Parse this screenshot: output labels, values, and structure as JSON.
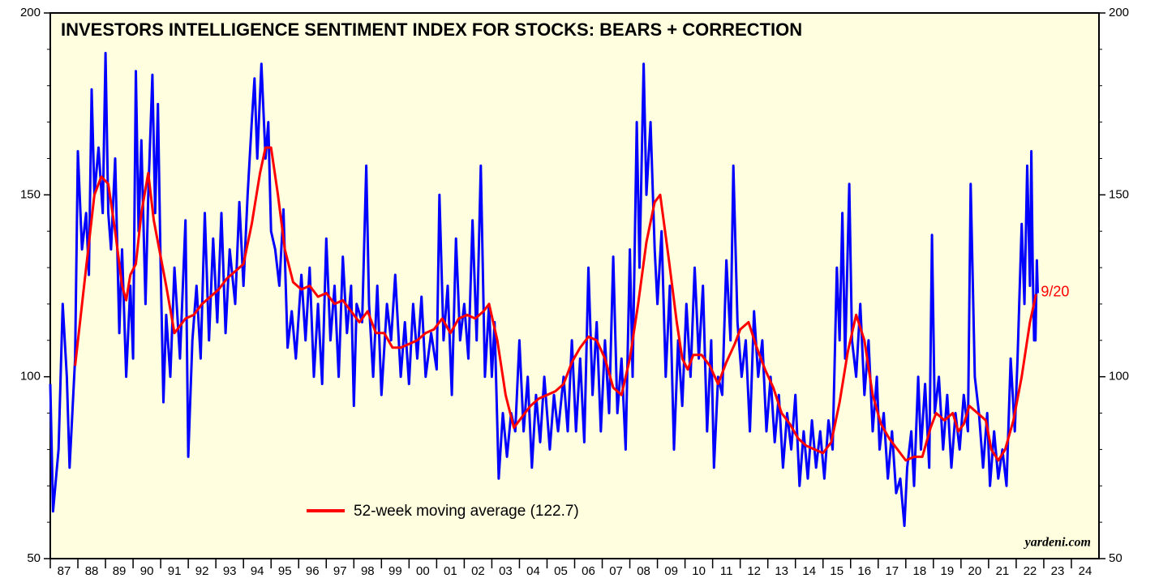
{
  "chart_data": {
    "type": "line",
    "title": "INVESTORS INTELLIGENCE SENTIMENT INDEX FOR STOCKS: BEARS + CORRECTION",
    "source": "yardeni.com",
    "annotation": "9/20",
    "ylim": [
      50,
      200
    ],
    "yticks": [
      50,
      100,
      150,
      200
    ],
    "yminor_ticks": [
      60,
      70,
      80,
      90,
      110,
      120,
      130,
      140,
      160,
      170,
      180,
      190
    ],
    "xlim": [
      1987,
      2025
    ],
    "xticks": [
      {
        "value": 1987,
        "label": "87"
      },
      {
        "value": 1988,
        "label": "88"
      },
      {
        "value": 1989,
        "label": "89"
      },
      {
        "value": 1990,
        "label": "90"
      },
      {
        "value": 1991,
        "label": "91"
      },
      {
        "value": 1992,
        "label": "92"
      },
      {
        "value": 1993,
        "label": "93"
      },
      {
        "value": 1994,
        "label": "94"
      },
      {
        "value": 1995,
        "label": "95"
      },
      {
        "value": 1996,
        "label": "96"
      },
      {
        "value": 1997,
        "label": "97"
      },
      {
        "value": 1998,
        "label": "98"
      },
      {
        "value": 1999,
        "label": "99"
      },
      {
        "value": 2000,
        "label": "00"
      },
      {
        "value": 2001,
        "label": "01"
      },
      {
        "value": 2002,
        "label": "02"
      },
      {
        "value": 2003,
        "label": "03"
      },
      {
        "value": 2004,
        "label": "04"
      },
      {
        "value": 2005,
        "label": "05"
      },
      {
        "value": 2006,
        "label": "06"
      },
      {
        "value": 2007,
        "label": "07"
      },
      {
        "value": 2008,
        "label": "08"
      },
      {
        "value": 2009,
        "label": "09"
      },
      {
        "value": 2010,
        "label": "10"
      },
      {
        "value": 2011,
        "label": "11"
      },
      {
        "value": 2012,
        "label": "12"
      },
      {
        "value": 2013,
        "label": "13"
      },
      {
        "value": 2014,
        "label": "14"
      },
      {
        "value": 2015,
        "label": "15"
      },
      {
        "value": 2016,
        "label": "16"
      },
      {
        "value": 2017,
        "label": "17"
      },
      {
        "value": 2018,
        "label": "18"
      },
      {
        "value": 2019,
        "label": "19"
      },
      {
        "value": 2020,
        "label": "20"
      },
      {
        "value": 2021,
        "label": "21"
      },
      {
        "value": 2022,
        "label": "22"
      },
      {
        "value": 2023,
        "label": "23"
      },
      {
        "value": 2024,
        "label": "24"
      }
    ],
    "background": "#ffffe0",
    "series": [
      {
        "color": "#0000ff",
        "x": [
          1987.0,
          1987.1,
          1987.3,
          1987.45,
          1987.6,
          1987.7,
          1987.9,
          1988.0,
          1988.15,
          1988.3,
          1988.4,
          1988.5,
          1988.6,
          1988.75,
          1988.9,
          1989.0,
          1989.1,
          1989.2,
          1989.35,
          1989.5,
          1989.6,
          1989.75,
          1989.9,
          1990.0,
          1990.1,
          1990.2,
          1990.3,
          1990.45,
          1990.55,
          1990.7,
          1990.8,
          1990.9,
          1991.0,
          1991.1,
          1991.2,
          1991.35,
          1991.5,
          1991.7,
          1991.9,
          1992.0,
          1992.15,
          1992.3,
          1992.45,
          1992.6,
          1992.75,
          1992.9,
          1993.05,
          1993.2,
          1993.35,
          1993.5,
          1993.7,
          1993.85,
          1994.0,
          1994.15,
          1994.3,
          1994.4,
          1994.5,
          1994.65,
          1994.8,
          1994.9,
          1995.0,
          1995.15,
          1995.3,
          1995.45,
          1995.6,
          1995.75,
          1995.9,
          1996.1,
          1996.25,
          1996.4,
          1996.55,
          1996.7,
          1996.85,
          1997.0,
          1997.15,
          1997.3,
          1997.45,
          1997.6,
          1997.75,
          1997.9,
          1998.0,
          1998.1,
          1998.3,
          1998.45,
          1998.55,
          1998.7,
          1998.85,
          1999.0,
          1999.2,
          1999.35,
          1999.5,
          1999.7,
          1999.85,
          2000.0,
          2000.15,
          2000.3,
          2000.45,
          2000.6,
          2000.8,
          2001.0,
          2001.1,
          2001.25,
          2001.4,
          2001.55,
          2001.7,
          2001.85,
          2002.0,
          2002.15,
          2002.3,
          2002.45,
          2002.6,
          2002.75,
          2002.9,
          2003.0,
          2003.1,
          2003.25,
          2003.4,
          2003.55,
          2003.7,
          2003.85,
          2004.0,
          2004.15,
          2004.3,
          2004.45,
          2004.6,
          2004.75,
          2004.9,
          2005.1,
          2005.25,
          2005.4,
          2005.6,
          2005.75,
          2005.9,
          2006.05,
          2006.2,
          2006.35,
          2006.5,
          2006.65,
          2006.8,
          2006.95,
          2007.1,
          2007.25,
          2007.4,
          2007.55,
          2007.7,
          2007.85,
          2008.0,
          2008.1,
          2008.25,
          2008.35,
          2008.5,
          2008.6,
          2008.75,
          2008.9,
          2009.0,
          2009.15,
          2009.3,
          2009.45,
          2009.6,
          2009.75,
          2009.9,
          2010.05,
          2010.2,
          2010.35,
          2010.5,
          2010.65,
          2010.8,
          2010.95,
          2011.05,
          2011.2,
          2011.35,
          2011.5,
          2011.65,
          2011.75,
          2011.9,
          2012.05,
          2012.2,
          2012.35,
          2012.5,
          2012.65,
          2012.8,
          2012.95,
          2013.1,
          2013.25,
          2013.4,
          2013.55,
          2013.7,
          2013.85,
          2014.0,
          2014.15,
          2014.3,
          2014.45,
          2014.6,
          2014.75,
          2014.9,
          2015.05,
          2015.2,
          2015.35,
          2015.5,
          2015.6,
          2015.7,
          2015.8,
          2015.95,
          2016.05,
          2016.2,
          2016.35,
          2016.5,
          2016.65,
          2016.8,
          2016.95,
          2017.05,
          2017.2,
          2017.35,
          2017.5,
          2017.65,
          2017.8,
          2017.95,
          2018.05,
          2018.2,
          2018.3,
          2018.45,
          2018.55,
          2018.7,
          2018.85,
          2018.95,
          2019.05,
          2019.2,
          2019.35,
          2019.5,
          2019.65,
          2019.8,
          2019.95,
          2020.1,
          2020.25,
          2020.35,
          2020.5,
          2020.65,
          2020.8,
          2020.95,
          2021.05,
          2021.2,
          2021.35,
          2021.5,
          2021.65,
          2021.8,
          2021.95,
          2022.05,
          2022.2,
          2022.3,
          2022.4,
          2022.5,
          2022.55,
          2022.6,
          2022.65,
          2022.7,
          2022.75,
          2022.78
        ],
        "values": [
          98,
          63,
          80,
          120,
          100,
          75,
          105,
          162,
          135,
          145,
          128,
          179,
          150,
          163,
          145,
          189,
          145,
          135,
          160,
          112,
          135,
          100,
          125,
          105,
          184,
          140,
          165,
          120,
          150,
          183,
          145,
          175,
          130,
          93,
          117,
          100,
          130,
          105,
          143,
          78,
          110,
          125,
          105,
          145,
          110,
          138,
          115,
          145,
          112,
          135,
          120,
          148,
          125,
          150,
          170,
          182,
          160,
          186,
          160,
          170,
          140,
          135,
          125,
          146,
          108,
          118,
          105,
          128,
          110,
          130,
          100,
          120,
          98,
          138,
          110,
          125,
          100,
          133,
          112,
          125,
          92,
          120,
          115,
          158,
          120,
          100,
          125,
          95,
          120,
          110,
          128,
          100,
          115,
          98,
          120,
          105,
          122,
          100,
          112,
          102,
          150,
          110,
          125,
          95,
          138,
          110,
          120,
          105,
          143,
          110,
          158,
          100,
          120,
          100,
          115,
          72,
          90,
          78,
          90,
          85,
          110,
          85,
          100,
          75,
          95,
          82,
          100,
          80,
          95,
          85,
          100,
          85,
          110,
          85,
          105,
          82,
          130,
          95,
          115,
          85,
          110,
          90,
          133,
          90,
          105,
          80,
          135,
          100,
          170,
          130,
          186,
          150,
          170,
          135,
          120,
          140,
          100,
          125,
          80,
          110,
          92,
          120,
          100,
          130,
          105,
          125,
          85,
          110,
          75,
          100,
          95,
          132,
          110,
          158,
          115,
          100,
          110,
          85,
          118,
          100,
          110,
          85,
          100,
          82,
          95,
          75,
          90,
          80,
          95,
          70,
          85,
          72,
          88,
          75,
          85,
          72,
          88,
          80,
          130,
          110,
          145,
          105,
          153,
          110,
          100,
          120,
          95,
          110,
          85,
          100,
          80,
          90,
          72,
          85,
          68,
          72,
          59,
          75,
          85,
          70,
          100,
          80,
          98,
          75,
          139,
          90,
          100,
          80,
          95,
          75,
          90,
          80,
          95,
          85,
          153,
          100,
          90,
          75,
          90,
          70,
          85,
          72,
          80,
          70,
          105,
          85,
          105,
          142,
          120,
          158,
          125,
          162,
          130,
          110,
          110,
          132,
          123
        ]
      },
      {
        "name": "52-week moving average (122.7)",
        "color": "#ff0000",
        "x": [
          1987.9,
          1988.3,
          1988.6,
          1988.85,
          1989.1,
          1989.35,
          1989.6,
          1989.75,
          1989.9,
          1990.1,
          1990.3,
          1990.55,
          1990.75,
          1990.9,
          1991.2,
          1991.5,
          1991.7,
          1991.9,
          1992.2,
          1992.5,
          1992.8,
          1993.1,
          1993.4,
          1993.7,
          1994.0,
          1994.3,
          1994.6,
          1994.8,
          1995.0,
          1995.25,
          1995.5,
          1995.8,
          1996.1,
          1996.4,
          1996.7,
          1997.0,
          1997.3,
          1997.6,
          1997.9,
          1998.2,
          1998.5,
          1998.8,
          1999.1,
          1999.4,
          1999.7,
          2000.0,
          2000.3,
          2000.6,
          2000.9,
          2001.2,
          2001.5,
          2001.8,
          2002.1,
          2002.4,
          2002.7,
          2002.9,
          2003.2,
          2003.5,
          2003.8,
          2004.1,
          2004.4,
          2004.7,
          2005.0,
          2005.3,
          2005.6,
          2005.9,
          2006.2,
          2006.5,
          2006.8,
          2007.1,
          2007.4,
          2007.7,
          2008.0,
          2008.3,
          2008.6,
          2008.9,
          2009.1,
          2009.4,
          2009.7,
          2009.9,
          2010.1,
          2010.3,
          2010.6,
          2010.9,
          2011.2,
          2011.5,
          2011.8,
          2012.0,
          2012.3,
          2012.6,
          2012.9,
          2013.2,
          2013.5,
          2013.8,
          2014.1,
          2014.4,
          2014.7,
          2015.0,
          2015.3,
          2015.6,
          2015.9,
          2016.2,
          2016.5,
          2016.8,
          2017.1,
          2017.4,
          2017.7,
          2018.0,
          2018.3,
          2018.6,
          2018.9,
          2019.1,
          2019.4,
          2019.7,
          2019.9,
          2020.1,
          2020.3,
          2020.6,
          2020.9,
          2021.1,
          2021.35,
          2021.6,
          2021.9,
          2022.2,
          2022.5,
          2022.72
        ],
        "values": [
          103,
          130,
          150,
          155,
          153,
          140,
          125,
          121,
          128,
          131,
          145,
          156,
          143,
          137,
          125,
          112,
          114,
          116,
          117,
          120,
          122,
          124,
          127,
          129,
          131,
          142,
          156,
          163,
          163,
          150,
          135,
          126,
          124,
          125,
          122,
          123,
          120,
          121,
          118,
          115,
          118,
          112,
          112,
          108,
          108,
          109,
          110,
          112,
          113,
          116,
          112,
          116,
          117,
          116,
          118,
          120,
          110,
          95,
          86,
          89,
          92,
          94,
          95,
          96,
          98,
          104,
          108,
          111,
          110,
          105,
          97,
          95,
          105,
          120,
          137,
          148,
          150,
          133,
          115,
          105,
          102,
          106,
          106,
          103,
          98,
          104,
          109,
          113,
          115,
          108,
          102,
          97,
          90,
          87,
          83,
          81,
          80,
          79,
          82,
          93,
          107,
          117,
          110,
          95,
          87,
          83,
          80,
          77,
          78,
          78,
          86,
          90,
          88,
          90,
          85,
          87,
          92,
          90,
          88,
          80,
          77,
          80,
          88,
          100,
          115,
          122.7
        ]
      }
    ]
  }
}
